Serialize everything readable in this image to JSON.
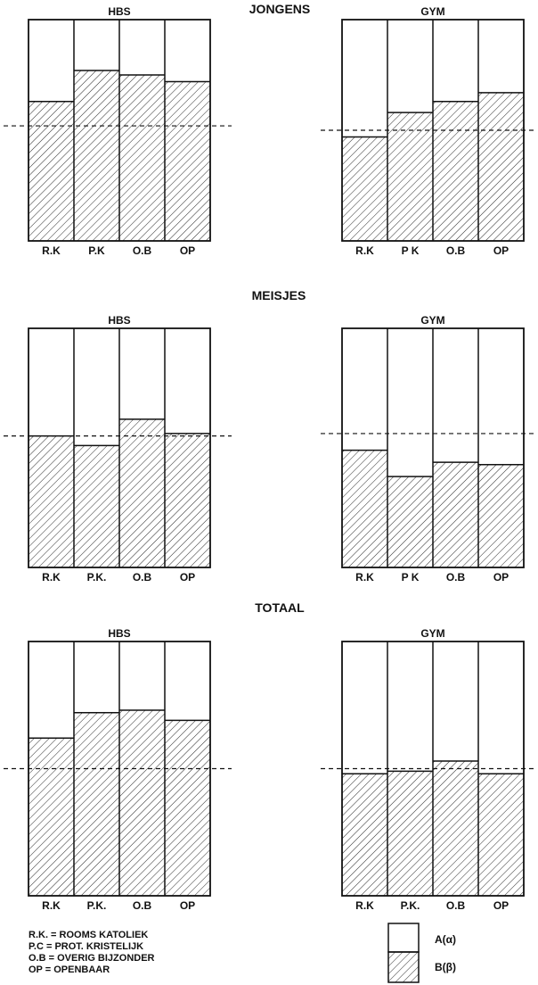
{
  "colors": {
    "ink": "#111111",
    "paper": "#ffffff"
  },
  "panel_titles": {
    "jongens": "JONGENS",
    "meisjes": "MEISJES",
    "totaal": "TOTAAL"
  },
  "legend": {
    "keys": [
      "R.K. = ROOMS KATOLIEK",
      "P.C = PROT. KRISTELIJK",
      "O.B = OVERIG BIJZONDER",
      "OP = OPENBAAR"
    ],
    "a_label": "A(α)",
    "b_label": "B(β)"
  },
  "chart_data": [
    {
      "type": "bar",
      "stacked": true,
      "group": "JONGENS",
      "title": "HBS",
      "categories": [
        "R.K",
        "P.K",
        "O.B",
        "OP"
      ],
      "series": [
        {
          "name": "B(β)",
          "values": [
            63,
            77,
            75,
            72
          ]
        },
        {
          "name": "A(α)",
          "values": [
            37,
            23,
            25,
            28
          ]
        }
      ],
      "reference_line": 52,
      "ylim": [
        0,
        100
      ]
    },
    {
      "type": "bar",
      "stacked": true,
      "group": "JONGENS",
      "title": "GYM",
      "categories": [
        "R.K",
        "P K",
        "O.B",
        "OP"
      ],
      "series": [
        {
          "name": "B(β)",
          "values": [
            47,
            58,
            63,
            67
          ]
        },
        {
          "name": "A(α)",
          "values": [
            53,
            42,
            37,
            33
          ]
        }
      ],
      "reference_line": 50,
      "ylim": [
        0,
        100
      ]
    },
    {
      "type": "bar",
      "stacked": true,
      "group": "MEISJES",
      "title": "HBS",
      "categories": [
        "R.K",
        "P.K.",
        "O.B",
        "OP"
      ],
      "series": [
        {
          "name": "B(β)",
          "values": [
            55,
            51,
            62,
            56
          ]
        },
        {
          "name": "A(α)",
          "values": [
            45,
            49,
            38,
            44
          ]
        }
      ],
      "reference_line": 55,
      "ylim": [
        0,
        100
      ]
    },
    {
      "type": "bar",
      "stacked": true,
      "group": "MEISJES",
      "title": "GYM",
      "categories": [
        "R.K",
        "P K",
        "O.B",
        "OP"
      ],
      "series": [
        {
          "name": "B(β)",
          "values": [
            49,
            38,
            44,
            43
          ]
        },
        {
          "name": "A(α)",
          "values": [
            51,
            62,
            56,
            57
          ]
        }
      ],
      "reference_line": 56,
      "ylim": [
        0,
        100
      ]
    },
    {
      "type": "bar",
      "stacked": true,
      "group": "TOTAAL",
      "title": "HBS",
      "categories": [
        "R.K",
        "P.K.",
        "O.B",
        "OP"
      ],
      "series": [
        {
          "name": "B(β)",
          "values": [
            62,
            72,
            73,
            69
          ]
        },
        {
          "name": "A(α)",
          "values": [
            38,
            28,
            27,
            31
          ]
        }
      ],
      "reference_line": 50,
      "ylim": [
        0,
        100
      ]
    },
    {
      "type": "bar",
      "stacked": true,
      "group": "TOTAAL",
      "title": "GYM",
      "categories": [
        "R.K",
        "P.K.",
        "O.B",
        "OP"
      ],
      "series": [
        {
          "name": "B(β)",
          "values": [
            48,
            49,
            53,
            48
          ]
        },
        {
          "name": "A(α)",
          "values": [
            52,
            51,
            47,
            52
          ]
        }
      ],
      "reference_line": 50,
      "ylim": [
        0,
        100
      ]
    }
  ]
}
